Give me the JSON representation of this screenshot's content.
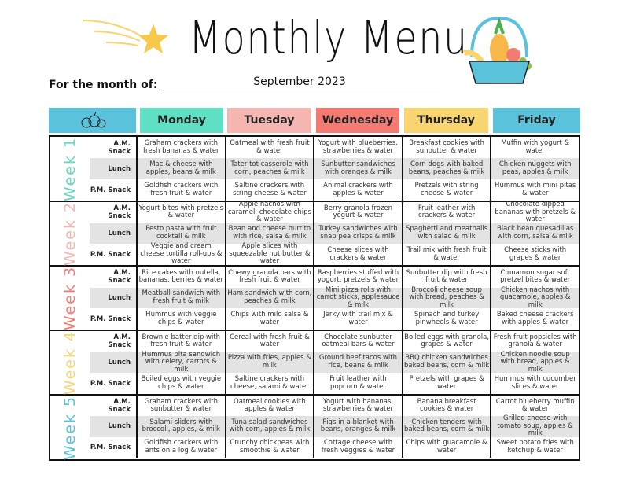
{
  "header": {
    "title": "Monthly Menu",
    "month_label": "For the month of:",
    "month_value": "September 2023"
  },
  "days": [
    {
      "label": "Monday",
      "color": "#5fe0c4"
    },
    {
      "label": "Tuesday",
      "color": "#f5b5b1"
    },
    {
      "label": "Wednesday",
      "color": "#f47b72"
    },
    {
      "label": "Thursday",
      "color": "#f8d570"
    },
    {
      "label": "Friday",
      "color": "#5bc2dc"
    }
  ],
  "header_icon_cell_color": "#5bc2dc",
  "meals": [
    "A.M. Snack",
    "Lunch",
    "P.M. Snack"
  ],
  "weeks": [
    {
      "label": "Week 1",
      "color": "#5fd9c0",
      "rows": [
        [
          "Graham crackers with fresh bananas & water",
          "Oatmeal with fresh fruit & water",
          "Yogurt with blueberries, strawberries & water",
          "Breakfast cookies with sunbutter & water",
          "Muffin with yogurt & water"
        ],
        [
          "Mac & cheese with apples, beans & milk",
          "Tater tot casserole with corn, peaches & milk",
          "Sunbutter sandwiches with oranges & milk",
          "Corn dogs with baked beans, peaches & milk",
          "Chicken nuggets with peas, apples & milk"
        ],
        [
          "Goldfish crackers with fresh fruit & water",
          "Saltine crackers with string cheese & water",
          "Animal crackers with apples & water",
          "Pretzels with string cheese & water",
          "Hummus with mini pitas & water"
        ]
      ]
    },
    {
      "label": "Week 2",
      "color": "#f5b5b1",
      "rows": [
        [
          "Yogurt bites with pretzels & water",
          "Apple nachos with caramel, chocolate chips & water",
          "Berry granola frozen yogurt & water",
          "Fruit leather with crackers & water",
          "Chocolate dipped bananas with pretzels & water"
        ],
        [
          "Pesto pasta with fruit cocktail & milk",
          "Bean and cheese burrito with rice, salsa & milk",
          "Turkey sandwiches with snap pea crisps & milk",
          "Spaghetti and meatballs with salad & milk",
          "Black bean quesadillas with corn, salsa & milk"
        ],
        [
          "Veggie and cream cheese tortilla roll-ups & water",
          "Apple slices with squeezable nut butter & water",
          "Cheese slices with crackers & water",
          "Trail mix with fresh fruit & water",
          "Cheese sticks with grapes & water"
        ]
      ]
    },
    {
      "label": "Week 3",
      "color": "#f47b72",
      "rows": [
        [
          "Rice cakes with nutella, bananas, berries & water",
          "Chewy granola bars with fresh fruit & water",
          "Raspberries stuffed with yogurt, pretzels & water",
          "Sunbutter dip with fresh fruit & water",
          "Cinnamon sugar soft pretzel bites & water"
        ],
        [
          "Meatball sandwich with fresh fruit & milk",
          "Ham sandwich with corn, peaches & milk",
          "Mini pizza rolls with carrot sticks, applesauce & milk",
          "Broccoli cheese soup with bread, peaches & milk",
          "Chicken nachos with guacamole, apples & milk"
        ],
        [
          "Hummus with veggie chips & water",
          "Chips with mild salsa & water",
          "Jerky with trail mix & water",
          "Spinach and turkey pinwheels & water",
          "Baked cheese crackers with apples & water"
        ]
      ]
    },
    {
      "label": "Week 4",
      "color": "#f8d570",
      "rows": [
        [
          "Brownie batter dip with fresh fruit & water",
          "Cereal with fresh fruit & water",
          "Chocolate sunbutter oatmeal bars & water",
          "Boiled eggs with granola, grapes & water",
          "Fresh fruit popsicles with granola & water"
        ],
        [
          "Hummus pita sandwich with celery, carrots & milk",
          "Pizza with fries, apples & milk",
          "Ground beef tacos with rice, beans & milk",
          "BBQ chicken sandwiches baked beans, corn & milk",
          "Chicken noodle soup with bread, apples & milk"
        ],
        [
          "Boiled eggs with veggie chips & water",
          "Saltine crackers with cheese, salami & water",
          "Fruit leather with popcorn & water",
          "Pretzels with grapes & water",
          "Hummus with cucumber slices & water"
        ]
      ]
    },
    {
      "label": "Week 5",
      "color": "#5bc2dc",
      "rows": [
        [
          "Graham crackers with sunbutter & water",
          "Oatmeal cookies with apples & water",
          "Yogurt with bananas, strawberries & water",
          "Banana breakfast cookies & water",
          "Carrot blueberry muffin & water"
        ],
        [
          "Salami sliders with broccoli, apples, & milk",
          "Tuna salad sandwiches with corn, apples & milk",
          "Pigs in a blanket with beans, oranges & milk",
          "Chicken tenders with baked beans, corn & milk",
          "Grilled cheese with tomato soup, apples & milk"
        ],
        [
          "Goldfish crackers with ants on a log & water",
          "Crunchy chickpeas with smoothie & water",
          "Cottage cheese with fresh veggies & water",
          "Chips with guacamole & water",
          "Sweet potato fries with ketchup & water"
        ]
      ]
    }
  ]
}
